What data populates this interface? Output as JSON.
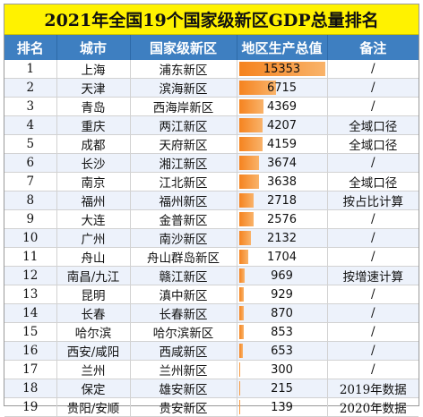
{
  "title": "2021年全国19个国家级新区GDP总量排名",
  "headers": [
    "排名",
    "城市",
    "国家级新区",
    "地区生产总值",
    "备注"
  ],
  "rows": [
    {
      "rank": "1",
      "city": "上海",
      "zone": "浦东新区",
      "gdp": "15353",
      "note": "/"
    },
    {
      "rank": "2",
      "city": "天津",
      "zone": "滨海新区",
      "gdp": "6715",
      "note": "/"
    },
    {
      "rank": "3",
      "city": "青岛",
      "zone": "西海岸新区",
      "gdp": "4369",
      "note": "/"
    },
    {
      "rank": "4",
      "city": "重庆",
      "zone": "两江新区",
      "gdp": "4207",
      "note": "全域口径"
    },
    {
      "rank": "5",
      "city": "成都",
      "zone": "天府新区",
      "gdp": "4159",
      "note": "全域口径"
    },
    {
      "rank": "6",
      "city": "长沙",
      "zone": "湘江新区",
      "gdp": "3674",
      "note": "/"
    },
    {
      "rank": "7",
      "city": "南京",
      "zone": "江北新区",
      "gdp": "3638",
      "note": "全域口径"
    },
    {
      "rank": "8",
      "city": "福州",
      "zone": "福州新区",
      "gdp": "2718",
      "note": "按占比计算"
    },
    {
      "rank": "9",
      "city": "大连",
      "zone": "金普新区",
      "gdp": "2576",
      "note": "/"
    },
    {
      "rank": "10",
      "city": "广州",
      "zone": "南沙新区",
      "gdp": "2132",
      "note": "/"
    },
    {
      "rank": "11",
      "city": "舟山",
      "zone": "舟山群岛新区",
      "gdp": "1704",
      "note": "/"
    },
    {
      "rank": "12",
      "city": "南昌/九江",
      "zone": "赣江新区",
      "gdp": "969",
      "note": "按增速计算"
    },
    {
      "rank": "13",
      "city": "昆明",
      "zone": "滇中新区",
      "gdp": "929",
      "note": "/"
    },
    {
      "rank": "14",
      "city": "长春",
      "zone": "长春新区",
      "gdp": "870",
      "note": "/"
    },
    {
      "rank": "15",
      "city": "哈尔滨",
      "zone": "哈尔滨新区",
      "gdp": "853",
      "note": "/"
    },
    {
      "rank": "16",
      "city": "西安/咸阳",
      "zone": "西咸新区",
      "gdp": "653",
      "note": "/"
    },
    {
      "rank": "17",
      "city": "兰州",
      "zone": "兰州新区",
      "gdp": "300",
      "note": "/"
    },
    {
      "rank": "18",
      "city": "保定",
      "zone": "雄安新区",
      "gdp": "215",
      "note": "2019年数据"
    },
    {
      "rank": "19",
      "city": "贵阳/安顺",
      "zone": "贵安新区",
      "gdp": "139",
      "note": "2020年数据"
    }
  ],
  "colors": {
    "title_bg": "#fff200",
    "header_bg": "#3e7fc1",
    "bar": "#f5831f"
  }
}
